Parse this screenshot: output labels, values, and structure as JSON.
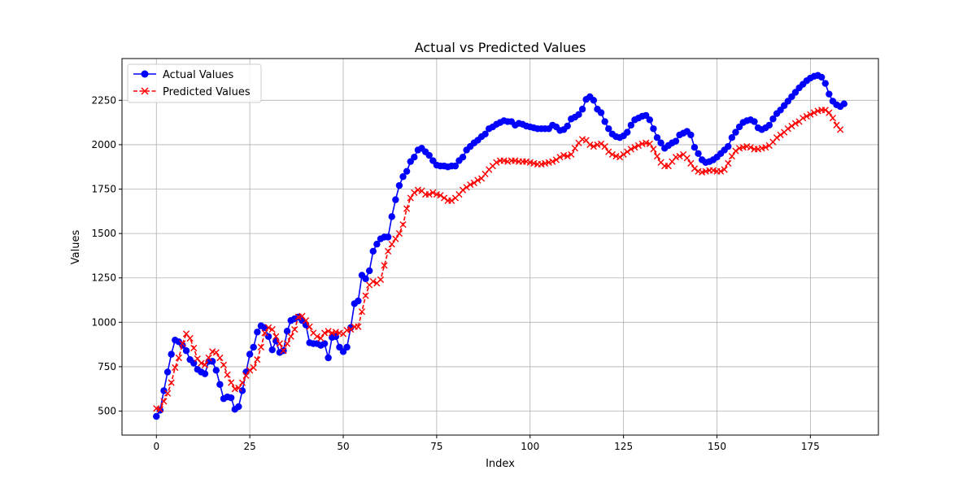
{
  "chart_data": {
    "type": "line",
    "title": "Actual vs Predicted Values",
    "xlabel": "Index",
    "ylabel": "Values",
    "xlim": [
      -9.2,
      193.2
    ],
    "ylim": [
      365,
      2485
    ],
    "xticks": [
      0,
      25,
      50,
      75,
      100,
      125,
      150,
      175
    ],
    "yticks": [
      500,
      750,
      1000,
      1250,
      1500,
      1750,
      2000,
      2250
    ],
    "grid": true,
    "legend_position": "top-left",
    "series": [
      {
        "name": "Actual Values",
        "color": "#0000ff",
        "marker": "circle",
        "linestyle": "solid",
        "values": [
          470,
          505,
          615,
          720,
          820,
          900,
          890,
          870,
          840,
          790,
          770,
          735,
          720,
          710,
          780,
          780,
          730,
          650,
          570,
          580,
          575,
          510,
          525,
          615,
          720,
          820,
          860,
          945,
          980,
          970,
          920,
          845,
          895,
          830,
          840,
          950,
          1010,
          1020,
          1030,
          1010,
          985,
          885,
          880,
          880,
          870,
          880,
          800,
          915,
          920,
          860,
          835,
          860,
          970,
          1105,
          1120,
          1265,
          1245,
          1290,
          1400,
          1440,
          1470,
          1480,
          1480,
          1595,
          1690,
          1770,
          1820,
          1850,
          1905,
          1930,
          1970,
          1980,
          1960,
          1940,
          1910,
          1885,
          1880,
          1880,
          1875,
          1880,
          1880,
          1910,
          1930,
          1970,
          1990,
          2010,
          2025,
          2045,
          2060,
          2090,
          2100,
          2115,
          2125,
          2135,
          2130,
          2130,
          2110,
          2120,
          2115,
          2105,
          2100,
          2095,
          2090,
          2090,
          2090,
          2090,
          2110,
          2100,
          2080,
          2085,
          2105,
          2145,
          2155,
          2170,
          2200,
          2255,
          2270,
          2250,
          2200,
          2180,
          2130,
          2090,
          2060,
          2045,
          2040,
          2050,
          2070,
          2110,
          2140,
          2150,
          2160,
          2165,
          2140,
          2090,
          2040,
          2010,
          1980,
          1995,
          2010,
          2020,
          2055,
          2065,
          2075,
          2055,
          1985,
          1950,
          1915,
          1900,
          1905,
          1915,
          1930,
          1950,
          1970,
          1990,
          2040,
          2070,
          2100,
          2125,
          2135,
          2140,
          2130,
          2095,
          2085,
          2095,
          2110,
          2145,
          2175,
          2195,
          2220,
          2245,
          2270,
          2295,
          2320,
          2340,
          2360,
          2375,
          2385,
          2390,
          2380,
          2345,
          2285,
          2245,
          2225,
          2215,
          2230
        ]
      },
      {
        "name": "Predicted Values",
        "color": "#ff0000",
        "marker": "x",
        "linestyle": "dashed",
        "values": [
          515,
          510,
          555,
          600,
          660,
          745,
          800,
          880,
          935,
          910,
          855,
          795,
          770,
          760,
          800,
          835,
          830,
          800,
          760,
          705,
          660,
          625,
          630,
          660,
          700,
          730,
          745,
          790,
          860,
          940,
          970,
          960,
          920,
          880,
          840,
          880,
          920,
          960,
          1030,
          1035,
          1010,
          975,
          940,
          920,
          910,
          940,
          950,
          940,
          945,
          940,
          935,
          955,
          960,
          975,
          975,
          1060,
          1150,
          1210,
          1230,
          1220,
          1240,
          1320,
          1400,
          1440,
          1470,
          1500,
          1550,
          1640,
          1700,
          1730,
          1745,
          1740,
          1720,
          1720,
          1730,
          1720,
          1715,
          1700,
          1685,
          1685,
          1700,
          1720,
          1745,
          1760,
          1775,
          1785,
          1800,
          1810,
          1835,
          1860,
          1880,
          1900,
          1910,
          1910,
          1905,
          1910,
          1910,
          1905,
          1905,
          1905,
          1900,
          1895,
          1890,
          1890,
          1895,
          1900,
          1905,
          1915,
          1930,
          1940,
          1935,
          1945,
          1980,
          2010,
          2030,
          2025,
          2000,
          1990,
          2000,
          2005,
          1990,
          1960,
          1945,
          1935,
          1930,
          1945,
          1960,
          1975,
          1985,
          1995,
          2005,
          2010,
          2005,
          1975,
          1935,
          1900,
          1880,
          1880,
          1905,
          1930,
          1935,
          1945,
          1925,
          1895,
          1865,
          1850,
          1845,
          1850,
          1855,
          1855,
          1850,
          1850,
          1860,
          1895,
          1935,
          1965,
          1980,
          1985,
          1990,
          1985,
          1975,
          1975,
          1980,
          1985,
          1995,
          2015,
          2040,
          2055,
          2070,
          2090,
          2105,
          2120,
          2130,
          2150,
          2160,
          2170,
          2180,
          2190,
          2195,
          2195,
          2180,
          2150,
          2110,
          2085
        ]
      }
    ]
  }
}
